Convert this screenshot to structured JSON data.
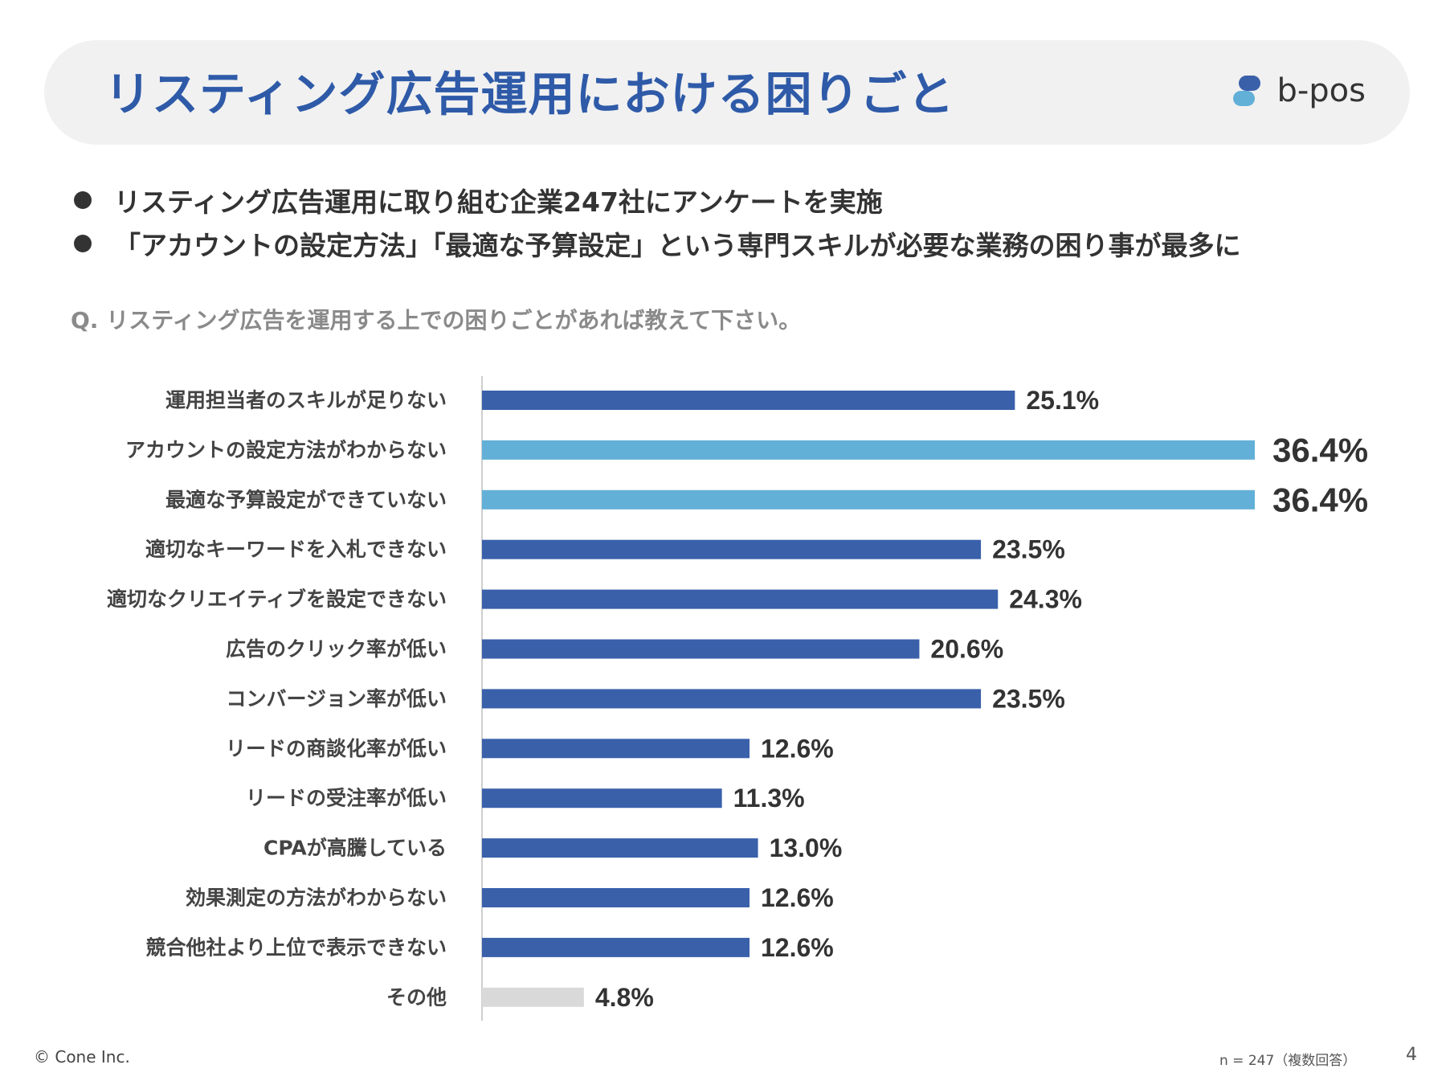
{
  "header": {
    "title": "リスティング広告運用における困りごと"
  },
  "logo": {
    "text": "b-pos"
  },
  "bullets": [
    "リスティング広告運用に取り組む企業247社にアンケートを実施",
    "「アカウントの設定方法」「最適な予算設定」という専門スキルが必要な業務の困り事が最多に"
  ],
  "question": "Q. リスティング広告を運用する上での困りごとがあれば教えて下さい。",
  "colors": {
    "title": "#2e5aa8",
    "bar_primary": "#3a60aa",
    "bar_highlight": "#62b0d7",
    "bar_other": "#d9d9d9",
    "text": "#333333"
  },
  "chart_data": {
    "type": "bar",
    "orientation": "horizontal",
    "title": "Q. リスティング広告を運用する上での困りごとがあれば教えて下さい。",
    "xlim": [
      0,
      36.4
    ],
    "grid": false,
    "categories": [
      "運用担当者のスキルが足りない",
      "アカウントの設定方法がわからない",
      "最適な予算設定ができていない",
      "適切なキーワードを入札できない",
      "適切なクリエイティブを設定できない",
      "広告のクリック率が低い",
      "コンバージョン率が低い",
      "リードの商談化率が低い",
      "リードの受注率が低い",
      "CPAが高騰している",
      "効果測定の方法がわからない",
      "競合他社より上位で表示できない",
      "その他"
    ],
    "values": [
      25.1,
      36.4,
      36.4,
      23.5,
      24.3,
      20.6,
      23.5,
      12.6,
      11.3,
      13.0,
      12.6,
      12.6,
      4.8
    ],
    "value_labels": [
      "25.1%",
      "36.4%",
      "36.4%",
      "23.5%",
      "24.3%",
      "20.6%",
      "23.5%",
      "12.6%",
      "11.3%",
      "13.0%",
      "12.6%",
      "12.6%",
      "4.8%"
    ],
    "highlight": [
      "primary",
      "highlight",
      "highlight",
      "primary",
      "primary",
      "primary",
      "primary",
      "primary",
      "primary",
      "primary",
      "primary",
      "primary",
      "other"
    ]
  },
  "footer": {
    "copyright": "© Cone Inc.",
    "note": "n = 247（複数回答）",
    "page": "4"
  }
}
